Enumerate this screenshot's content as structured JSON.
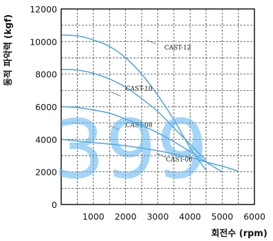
{
  "watermark": "399",
  "chart_data": {
    "type": "line",
    "xlabel": "회전수 (rpm)",
    "ylabel": "동적 파악력 (kgf)",
    "xlim": [
      0,
      6000
    ],
    "ylim": [
      0,
      12000
    ],
    "xticks": [
      "1000",
      "2000",
      "3000",
      "4000",
      "5000",
      "6000"
    ],
    "yticks": [
      "0",
      "2000",
      "4000",
      "6000",
      "8000",
      "10000",
      "12000"
    ],
    "grid": true,
    "series_color": "#4aa3df",
    "series": [
      {
        "name": "CAST-12",
        "x": [
          0,
          500,
          1000,
          1500,
          2000,
          2500,
          3000,
          3500,
          4000,
          4500
        ],
        "y": [
          10400,
          10350,
          10100,
          9700,
          9000,
          8000,
          6700,
          5200,
          3500,
          2100
        ]
      },
      {
        "name": "CAST-10",
        "x": [
          0,
          500,
          1000,
          1500,
          2000,
          2500,
          3000,
          3500,
          4000,
          4500
        ],
        "y": [
          8300,
          8250,
          8050,
          7700,
          7200,
          6500,
          5700,
          4700,
          3700,
          2700
        ]
      },
      {
        "name": "CAST-08",
        "x": [
          0,
          500,
          1000,
          1500,
          2000,
          2500,
          3000,
          3500,
          4000,
          4500,
          5000
        ],
        "y": [
          6000,
          5950,
          5800,
          5600,
          5250,
          4850,
          4400,
          3850,
          3250,
          2600,
          2000
        ]
      },
      {
        "name": "CAST-06",
        "x": [
          0,
          1000,
          2000,
          3000,
          3500,
          4000,
          4500,
          5000,
          5500
        ],
        "y": [
          4000,
          3800,
          3600,
          3300,
          3100,
          2900,
          2600,
          2350,
          2050
        ]
      }
    ]
  }
}
